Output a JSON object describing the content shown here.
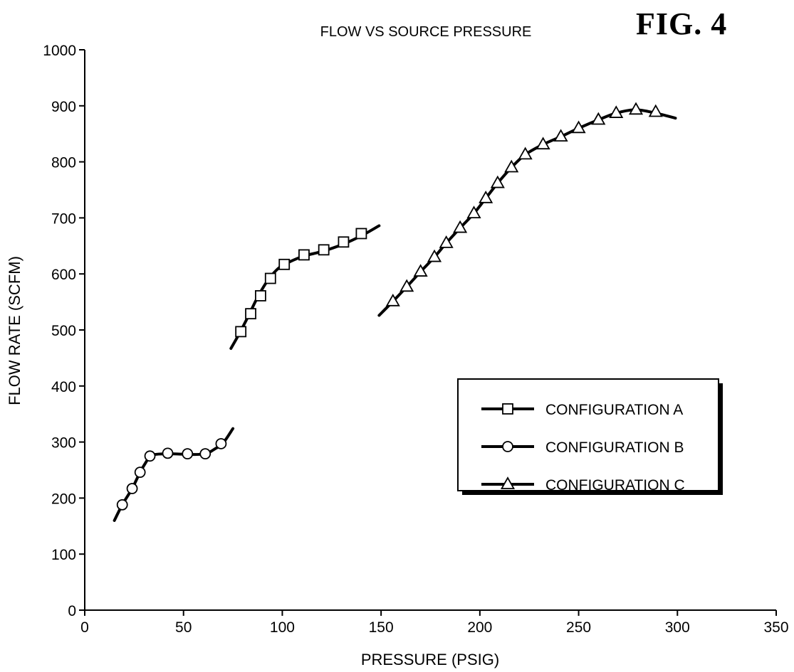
{
  "figure_label": "FIG. 4",
  "chart_data": {
    "type": "line",
    "title": "FLOW VS SOURCE PRESSURE",
    "xlabel": "PRESSURE (PSIG)",
    "ylabel": "FLOW RATE (SCFM)",
    "xlim": [
      0,
      350
    ],
    "ylim": [
      0,
      1000
    ],
    "x_ticks": [
      0,
      50,
      100,
      150,
      200,
      250,
      300,
      350
    ],
    "y_ticks": [
      0,
      100,
      200,
      300,
      400,
      500,
      600,
      700,
      800,
      900,
      1000
    ],
    "grid": false,
    "legend_position": "right-center",
    "series": [
      {
        "name": "CONFIGURATION A",
        "marker": "square",
        "curve": [
          [
            74,
            467
          ],
          [
            78,
            492
          ],
          [
            83,
            526
          ],
          [
            87,
            555
          ],
          [
            92,
            585
          ],
          [
            98,
            610
          ],
          [
            104,
            622
          ],
          [
            111,
            632
          ],
          [
            120,
            640
          ],
          [
            130,
            652
          ],
          [
            140,
            668
          ],
          [
            149,
            686
          ]
        ],
        "markers": [
          [
            79,
            497
          ],
          [
            84,
            529
          ],
          [
            89,
            561
          ],
          [
            94,
            592
          ],
          [
            101,
            617
          ],
          [
            111,
            634
          ],
          [
            121,
            643
          ],
          [
            131,
            657
          ],
          [
            140,
            672
          ]
        ]
      },
      {
        "name": "CONFIGURATION B",
        "marker": "circle",
        "curve": [
          [
            15,
            160
          ],
          [
            19,
            188
          ],
          [
            24,
            217
          ],
          [
            28,
            246
          ],
          [
            31,
            264
          ],
          [
            33,
            275
          ],
          [
            36,
            278
          ],
          [
            43,
            279
          ],
          [
            52,
            278
          ],
          [
            58,
            278
          ],
          [
            62,
            280
          ],
          [
            66,
            288
          ],
          [
            70,
            298
          ],
          [
            75,
            324
          ]
        ],
        "markers": [
          [
            19,
            188
          ],
          [
            24,
            217
          ],
          [
            28,
            246
          ],
          [
            33,
            275
          ],
          [
            42,
            280
          ],
          [
            52,
            279
          ],
          [
            61,
            279
          ],
          [
            69,
            297
          ]
        ]
      },
      {
        "name": "CONFIGURATION C",
        "marker": "triangle",
        "curve": [
          [
            149,
            526
          ],
          [
            156,
            551
          ],
          [
            163,
            577
          ],
          [
            170,
            604
          ],
          [
            177,
            630
          ],
          [
            183,
            655
          ],
          [
            190,
            682
          ],
          [
            197,
            708
          ],
          [
            203,
            735
          ],
          [
            209,
            762
          ],
          [
            216,
            790
          ],
          [
            223,
            813
          ],
          [
            232,
            831
          ],
          [
            241,
            845
          ],
          [
            250,
            860
          ],
          [
            260,
            875
          ],
          [
            269,
            887
          ],
          [
            279,
            893
          ],
          [
            289,
            887
          ],
          [
            299,
            878
          ]
        ],
        "markers": [
          [
            156,
            551
          ],
          [
            163,
            577
          ],
          [
            170,
            604
          ],
          [
            177,
            630
          ],
          [
            183,
            655
          ],
          [
            190,
            682
          ],
          [
            197,
            708
          ],
          [
            203,
            735
          ],
          [
            209,
            762
          ],
          [
            216,
            790
          ],
          [
            223,
            813
          ],
          [
            232,
            831
          ],
          [
            241,
            845
          ],
          [
            250,
            860
          ],
          [
            260,
            875
          ],
          [
            269,
            887
          ],
          [
            279,
            893
          ],
          [
            289,
            889
          ]
        ]
      }
    ]
  }
}
